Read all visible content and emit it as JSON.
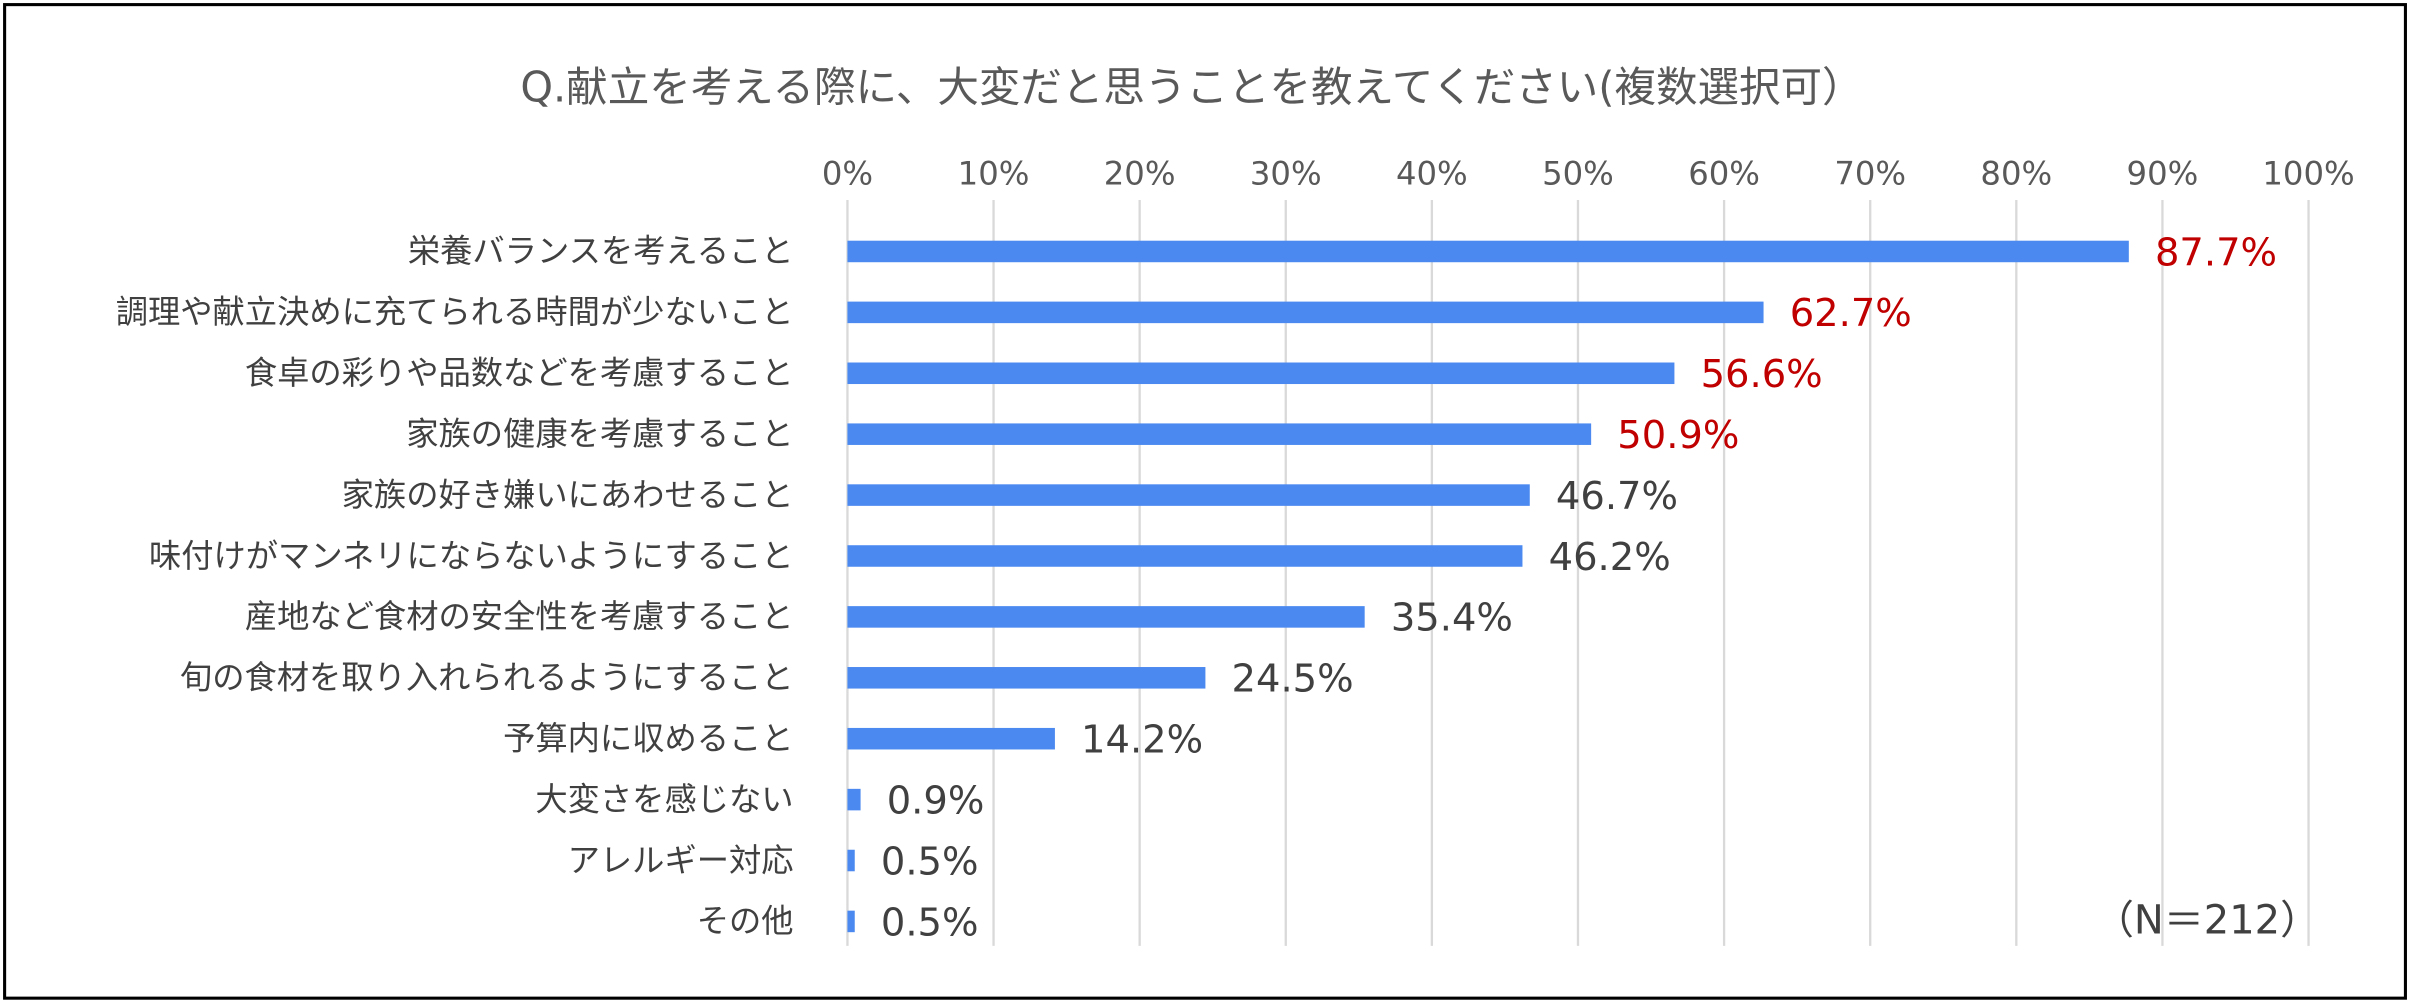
{
  "chart_data": {
    "type": "bar",
    "orientation": "horizontal",
    "title": "Q.献立を考える際に、大変だと思うことを教えてください(複数選択可）",
    "xlabel": "",
    "ylabel": "",
    "xlim": [
      0,
      100
    ],
    "x_ticks": [
      "0%",
      "10%",
      "20%",
      "30%",
      "40%",
      "50%",
      "60%",
      "70%",
      "80%",
      "90%",
      "100%"
    ],
    "grid": true,
    "legend": "none",
    "categories": [
      "栄養バランスを考えること",
      "調理や献立決めに充てられる時間が少ないこと",
      "食卓の彩りや品数などを考慮すること",
      "家族の健康を考慮すること",
      "家族の好き嫌いにあわせること",
      "味付けがマンネリにならないようにすること",
      "産地など食材の安全性を考慮すること",
      "旬の食材を取り入れられるようにすること",
      "予算内に収めること",
      "大変さを感じない",
      "アレルギー対応",
      "その他"
    ],
    "values": [
      87.7,
      62.7,
      56.6,
      50.9,
      46.7,
      46.2,
      35.4,
      24.5,
      14.2,
      0.9,
      0.5,
      0.5
    ],
    "value_labels": [
      "87.7%",
      "62.7%",
      "56.6%",
      "50.9%",
      "46.7%",
      "46.2%",
      "35.4%",
      "24.5%",
      "14.2%",
      "0.9%",
      "0.5%",
      "0.5%"
    ],
    "highlighted": [
      true,
      true,
      true,
      true,
      false,
      false,
      false,
      false,
      false,
      false,
      false,
      false
    ],
    "bar_color": "#4b89f0",
    "highlight_label_color": "#c00000",
    "label_color": "#404040",
    "note": "（N＝212）"
  }
}
